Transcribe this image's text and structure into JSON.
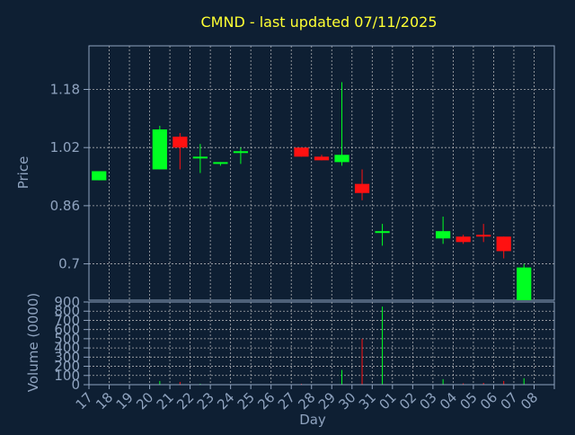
{
  "colors": {
    "background": "#0e1f33",
    "axis": "#8fa3bf",
    "title": "#ffff33",
    "grid": "#c8c8c8",
    "up": "#00ff22",
    "down": "#ff1111",
    "tick_text": "#8fa3bf"
  },
  "chart_data": [
    {
      "type": "candlestick",
      "title": "CMND - last updated 07/11/2025",
      "ylabel": "Price",
      "yticks": [
        0.7,
        0.86,
        1.02,
        1.18
      ],
      "ylim": [
        0.6,
        1.3
      ],
      "grid": true,
      "candles": [
        {
          "day": "17",
          "open": 0.93,
          "high": 0.955,
          "low": 0.93,
          "close": 0.955
        },
        {
          "day": "20",
          "open": 0.96,
          "high": 1.08,
          "low": 0.96,
          "close": 1.07
        },
        {
          "day": "21",
          "open": 1.05,
          "high": 1.06,
          "low": 0.96,
          "close": 1.02
        },
        {
          "day": "22",
          "open": 0.99,
          "high": 1.03,
          "low": 0.95,
          "close": 0.995
        },
        {
          "day": "23",
          "open": 0.975,
          "high": 0.98,
          "low": 0.97,
          "close": 0.98
        },
        {
          "day": "24",
          "open": 1.005,
          "high": 1.02,
          "low": 0.975,
          "close": 1.01
        },
        {
          "day": "27",
          "open": 1.02,
          "high": 1.02,
          "low": 0.995,
          "close": 0.995
        },
        {
          "day": "28",
          "open": 0.995,
          "high": 1.0,
          "low": 0.985,
          "close": 0.985
        },
        {
          "day": "29",
          "open": 0.98,
          "high": 1.2,
          "low": 0.97,
          "close": 1.0
        },
        {
          "day": "30",
          "open": 0.92,
          "high": 0.96,
          "low": 0.875,
          "close": 0.895
        },
        {
          "day": "31",
          "open": 0.785,
          "high": 0.81,
          "low": 0.75,
          "close": 0.79
        },
        {
          "day": "03",
          "open": 0.77,
          "high": 0.83,
          "low": 0.755,
          "close": 0.79
        },
        {
          "day": "04",
          "open": 0.775,
          "high": 0.78,
          "low": 0.755,
          "close": 0.76
        },
        {
          "day": "05",
          "open": 0.78,
          "high": 0.81,
          "low": 0.76,
          "close": 0.775
        },
        {
          "day": "06",
          "open": 0.775,
          "high": 0.775,
          "low": 0.715,
          "close": 0.735
        },
        {
          "day": "07",
          "open": 0.6,
          "high": 0.7,
          "low": 0.6,
          "close": 0.69
        }
      ]
    },
    {
      "type": "bar",
      "ylabel": "Volume (0000)",
      "xlabel": "Day",
      "yticks": [
        0,
        100,
        200,
        300,
        400,
        500,
        600,
        700,
        800,
        900
      ],
      "ylim": [
        0,
        900
      ],
      "grid": true,
      "categories": [
        "17",
        "18",
        "19",
        "20",
        "21",
        "22",
        "23",
        "24",
        "25",
        "26",
        "27",
        "28",
        "29",
        "30",
        "31",
        "01",
        "02",
        "03",
        "04",
        "05",
        "06",
        "07",
        "08"
      ],
      "values": [
        0,
        0,
        0,
        40,
        30,
        10,
        5,
        5,
        0,
        0,
        10,
        5,
        160,
        500,
        850,
        0,
        0,
        60,
        15,
        20,
        40,
        70,
        0
      ],
      "colors": [
        "up",
        "up",
        "up",
        "up",
        "down",
        "up",
        "up",
        "up",
        "up",
        "up",
        "down",
        "down",
        "up",
        "down",
        "up",
        "up",
        "up",
        "up",
        "down",
        "down",
        "down",
        "up",
        "up"
      ]
    }
  ]
}
